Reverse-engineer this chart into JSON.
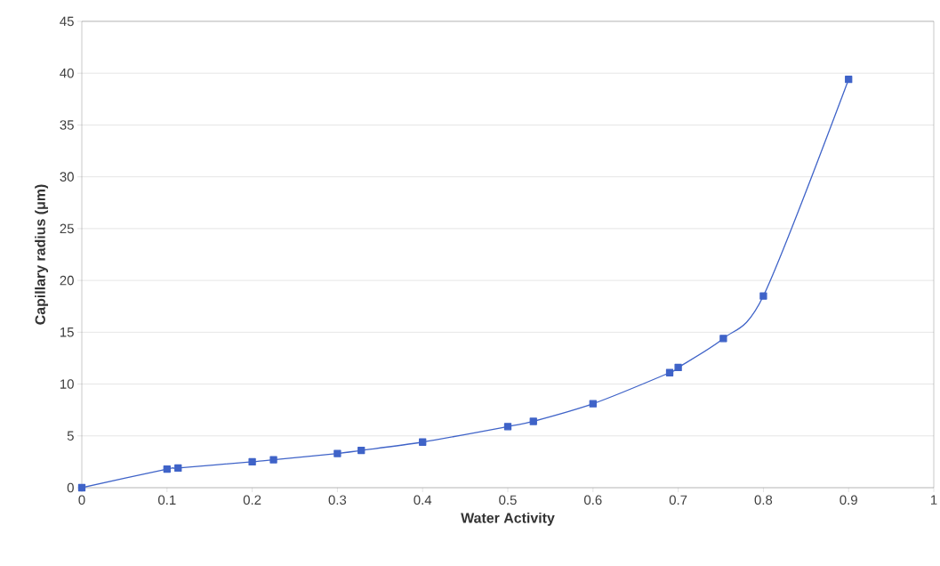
{
  "chart_data": {
    "type": "line",
    "xlabel": "Water Activity",
    "ylabel": "Capillary radius (μm)",
    "x": [
      0,
      0.1,
      0.113,
      0.2,
      0.225,
      0.3,
      0.328,
      0.4,
      0.5,
      0.53,
      0.6,
      0.69,
      0.7,
      0.753,
      0.8,
      0.9
    ],
    "series": [
      {
        "color": "#3f63c8",
        "values": [
          0,
          1.8,
          1.9,
          2.5,
          2.7,
          3.3,
          3.6,
          4.4,
          5.9,
          6.4,
          8.1,
          11.1,
          11.6,
          14.4,
          18.5,
          39.4
        ]
      }
    ],
    "xlim": [
      0,
      1
    ],
    "ylim": [
      0,
      45
    ],
    "xticks": [
      0,
      0.1,
      0.2,
      0.3,
      0.4,
      0.5,
      0.6,
      0.7,
      0.8,
      0.9,
      1
    ],
    "yticks": [
      0,
      5,
      10,
      15,
      20,
      25,
      30,
      35,
      40,
      45
    ],
    "grid": "y",
    "marker": "square",
    "line_style": "solid"
  }
}
